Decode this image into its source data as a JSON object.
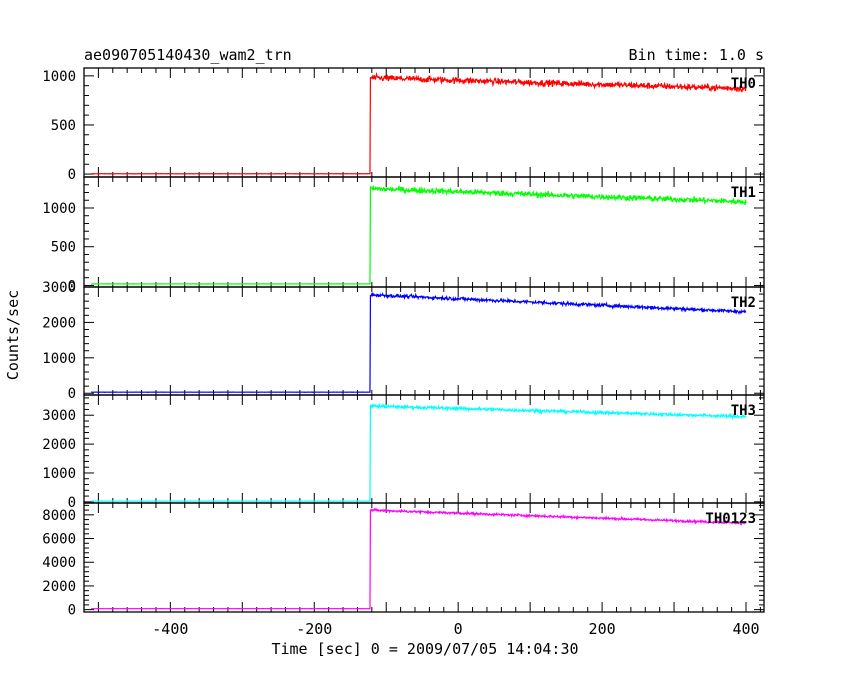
{
  "header": {
    "title": "ae090705140430_wam2_trn",
    "bin_time": "Bin time: 1.0 s"
  },
  "axes": {
    "ylabel": "Counts/sec",
    "xlabel": "Time [sec] 0 = 2009/07/05 14:04:30",
    "xlim": [
      -520,
      425
    ],
    "xticks": [
      -400,
      -200,
      0,
      200,
      400
    ]
  },
  "chart_data": [
    {
      "type": "line",
      "name": "TH0",
      "color": "#ff0000",
      "ylim": [
        -30,
        1080
      ],
      "yticks": [
        0,
        500,
        1000
      ],
      "onset": -122,
      "x_start": -510,
      "x_end": 400,
      "baseline": 3,
      "peak": 980,
      "end_value": 870,
      "noise": 30
    },
    {
      "type": "line",
      "name": "TH1",
      "color": "#00ff00",
      "ylim": [
        -20,
        1400
      ],
      "yticks": [
        0,
        500,
        1000
      ],
      "onset": -122,
      "x_start": -510,
      "x_end": 400,
      "baseline": 20,
      "peak": 1250,
      "end_value": 1080,
      "noise": 35
    },
    {
      "type": "line",
      "name": "TH2",
      "color": "#0000ff",
      "ylim": [
        -50,
        3000
      ],
      "yticks": [
        0,
        1000,
        2000,
        3000
      ],
      "onset": -122,
      "x_start": -510,
      "x_end": 400,
      "baseline": 30,
      "peak": 2780,
      "end_value": 2300,
      "noise": 45
    },
    {
      "type": "line",
      "name": "TH3",
      "color": "#00ffff",
      "ylim": [
        -40,
        3700
      ],
      "yticks": [
        0,
        1000,
        2000,
        3000
      ],
      "onset": -122,
      "x_start": -510,
      "x_end": 400,
      "baseline": 25,
      "peak": 3320,
      "end_value": 2950,
      "noise": 50
    },
    {
      "type": "line",
      "name": "TH0123",
      "color": "#ff00ff",
      "ylim": [
        -200,
        9000
      ],
      "yticks": [
        0,
        2000,
        4000,
        6000,
        8000
      ],
      "onset": -122,
      "x_start": -510,
      "x_end": 400,
      "baseline": 80,
      "peak": 8400,
      "end_value": 7300,
      "noise": 90
    }
  ]
}
